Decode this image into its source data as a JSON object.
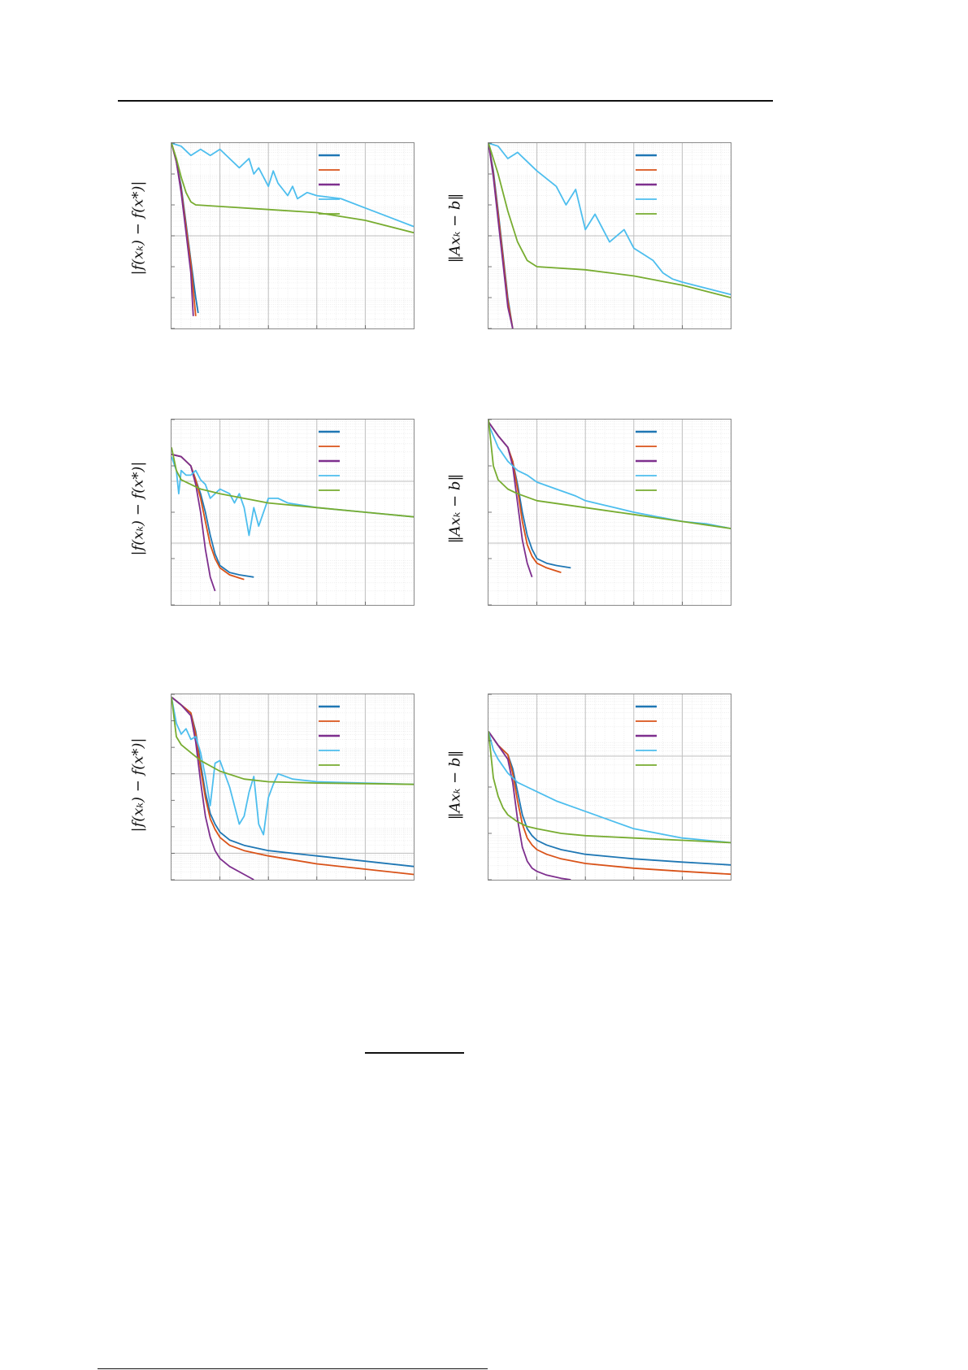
{
  "page": {
    "note": "",
    "colors": {
      "frame": "#8a8a8a",
      "major_grid": "#bfbfbf",
      "minor_grid": "#e4e4e4"
    }
  },
  "legend_colors": [
    "#1f77b4",
    "#d95319",
    "#7e2f8e",
    "#4dbeee",
    "#77ac30"
  ],
  "chart_data": [
    {
      "type": "line",
      "ylabel": "|f(x_k) − f(x*)|",
      "ylabel_text": "|f(xₖ) − f(x*)|",
      "x_range": [
        0,
        50
      ],
      "y_log_range": [
        -6,
        0
      ],
      "grid": true,
      "legend": "top-right",
      "series": [
        {
          "color": "#1f77b4",
          "x": [
            0,
            1,
            2,
            3,
            4,
            5,
            5.5
          ],
          "y": [
            0,
            -0.6,
            -1.4,
            -2.6,
            -3.8,
            -5.0,
            -5.5
          ]
        },
        {
          "color": "#d95319",
          "x": [
            0,
            1,
            2,
            3,
            4,
            5
          ],
          "y": [
            0,
            -0.6,
            -1.5,
            -2.7,
            -3.9,
            -5.6
          ]
        },
        {
          "color": "#7e2f8e",
          "x": [
            0,
            1,
            2,
            3,
            4,
            4.5
          ],
          "y": [
            0,
            -0.6,
            -1.6,
            -2.9,
            -4.2,
            -5.6
          ]
        },
        {
          "color": "#4dbeee",
          "x": [
            0,
            2,
            4,
            6,
            8,
            10,
            12,
            14,
            16,
            17,
            18,
            20,
            21,
            22,
            23,
            24,
            25,
            26,
            28,
            30,
            35,
            40,
            45,
            50
          ],
          "y": [
            0,
            -0.1,
            -0.4,
            -0.2,
            -0.4,
            -0.2,
            -0.5,
            -0.8,
            -0.5,
            -1.0,
            -0.8,
            -1.4,
            -0.9,
            -1.3,
            -1.5,
            -1.7,
            -1.4,
            -1.8,
            -1.6,
            -1.7,
            -1.8,
            -2.1,
            -2.4,
            -2.7
          ]
        },
        {
          "color": "#77ac30",
          "x": [
            0,
            1,
            2,
            3,
            4,
            5,
            10,
            20,
            30,
            40,
            50
          ],
          "y": [
            0,
            -0.5,
            -1.1,
            -1.6,
            -1.9,
            -2.0,
            -2.05,
            -2.15,
            -2.25,
            -2.5,
            -2.9
          ]
        }
      ]
    },
    {
      "type": "line",
      "ylabel": "‖Ax_k − b‖",
      "ylabel_text": "‖Axₖ − b‖",
      "x_range": [
        0,
        50
      ],
      "y_log_range": [
        -6,
        0
      ],
      "grid": true,
      "legend": "top-right",
      "series": [
        {
          "color": "#1f77b4",
          "x": [
            0,
            1,
            2,
            3,
            4,
            5
          ],
          "y": [
            0,
            -0.9,
            -2.2,
            -3.6,
            -5.0,
            -6.0
          ]
        },
        {
          "color": "#d95319",
          "x": [
            0,
            1,
            2,
            3,
            4,
            5
          ],
          "y": [
            0,
            -1.0,
            -2.3,
            -3.7,
            -5.1,
            -6.0
          ]
        },
        {
          "color": "#7e2f8e",
          "x": [
            0,
            1,
            2,
            3,
            4,
            5
          ],
          "y": [
            0,
            -1.1,
            -2.5,
            -3.9,
            -5.3,
            -6.0
          ]
        },
        {
          "color": "#4dbeee",
          "x": [
            0,
            2,
            4,
            6,
            8,
            10,
            14,
            16,
            18,
            20,
            22,
            25,
            28,
            30,
            32,
            34,
            36,
            38,
            40,
            50
          ],
          "y": [
            0,
            -0.1,
            -0.5,
            -0.3,
            -0.6,
            -0.9,
            -1.4,
            -2.0,
            -1.5,
            -2.8,
            -2.3,
            -3.2,
            -2.8,
            -3.4,
            -3.6,
            -3.8,
            -4.2,
            -4.4,
            -4.5,
            -4.9
          ]
        },
        {
          "color": "#77ac30",
          "x": [
            0,
            2,
            4,
            6,
            8,
            10,
            20,
            30,
            40,
            50
          ],
          "y": [
            0,
            -1.0,
            -2.2,
            -3.2,
            -3.8,
            -4.0,
            -4.1,
            -4.3,
            -4.6,
            -5.0
          ]
        }
      ]
    },
    {
      "type": "line",
      "ylabel": "|f(x_k) − f(x*)|",
      "ylabel_text": "|f(xₖ) − f(x*)|",
      "x_range": [
        0,
        50
      ],
      "y_log_range": [
        -4,
        0
      ],
      "grid": true,
      "legend": "top-right",
      "series": [
        {
          "color": "#1f77b4",
          "x": [
            0,
            2,
            4,
            5,
            6,
            7,
            8,
            9,
            10,
            12,
            14,
            17
          ],
          "y": [
            -0.75,
            -0.8,
            -1.0,
            -1.3,
            -1.6,
            -2.0,
            -2.5,
            -2.9,
            -3.15,
            -3.3,
            -3.35,
            -3.4
          ]
        },
        {
          "color": "#d95319",
          "x": [
            0,
            2,
            4,
            5,
            6,
            7,
            8,
            9,
            10,
            12,
            14,
            15
          ],
          "y": [
            -0.75,
            -0.8,
            -1.0,
            -1.3,
            -1.7,
            -2.2,
            -2.7,
            -3.0,
            -3.2,
            -3.35,
            -3.42,
            -3.45
          ]
        },
        {
          "color": "#7e2f8e",
          "x": [
            0,
            2,
            4,
            5,
            6,
            7,
            8,
            9
          ],
          "y": [
            -0.75,
            -0.8,
            -1.0,
            -1.4,
            -2.0,
            -2.8,
            -3.4,
            -3.7
          ]
        },
        {
          "color": "#4dbeee",
          "x": [
            0,
            1,
            1.5,
            2,
            3,
            4,
            5,
            6,
            7,
            8,
            10,
            12,
            13,
            14,
            15,
            16,
            17,
            18,
            20,
            22,
            24,
            30,
            40,
            50
          ],
          "y": [
            -0.8,
            -1.1,
            -1.6,
            -1.1,
            -1.2,
            -1.2,
            -1.1,
            -1.3,
            -1.4,
            -1.7,
            -1.5,
            -1.6,
            -1.8,
            -1.6,
            -1.9,
            -2.5,
            -1.9,
            -2.3,
            -1.7,
            -1.7,
            -1.8,
            -1.9,
            -2.0,
            -2.1
          ]
        },
        {
          "color": "#77ac30",
          "x": [
            0,
            1,
            2,
            4,
            6,
            10,
            20,
            30,
            40,
            50
          ],
          "y": [
            -0.6,
            -1.1,
            -1.3,
            -1.4,
            -1.5,
            -1.6,
            -1.8,
            -1.9,
            -2.0,
            -2.1
          ]
        }
      ]
    },
    {
      "type": "line",
      "ylabel": "‖Ax_k − b‖",
      "ylabel_text": "‖Axₖ − b‖",
      "x_range": [
        0,
        50
      ],
      "y_log_range": [
        -4,
        0
      ],
      "grid": true,
      "legend": "top-right",
      "series": [
        {
          "color": "#1f77b4",
          "x": [
            0,
            2,
            4,
            5,
            6,
            7,
            8,
            9,
            10,
            12,
            14,
            17
          ],
          "y": [
            -0.05,
            -0.35,
            -0.6,
            -0.9,
            -1.4,
            -2.0,
            -2.5,
            -2.8,
            -3.0,
            -3.1,
            -3.15,
            -3.2
          ]
        },
        {
          "color": "#d95319",
          "x": [
            0,
            2,
            4,
            5,
            6,
            7,
            8,
            9,
            10,
            12,
            15
          ],
          "y": [
            -0.05,
            -0.35,
            -0.6,
            -0.9,
            -1.5,
            -2.2,
            -2.7,
            -2.95,
            -3.1,
            -3.2,
            -3.3
          ]
        },
        {
          "color": "#7e2f8e",
          "x": [
            0,
            2,
            4,
            5,
            6,
            7,
            8,
            9
          ],
          "y": [
            -0.05,
            -0.35,
            -0.6,
            -1.0,
            -1.8,
            -2.6,
            -3.1,
            -3.4
          ]
        },
        {
          "color": "#4dbeee",
          "x": [
            0,
            2,
            4,
            6,
            8,
            10,
            14,
            18,
            20,
            22,
            26,
            30,
            35,
            40,
            45,
            50
          ],
          "y": [
            -0.1,
            -0.6,
            -0.9,
            -1.1,
            -1.2,
            -1.35,
            -1.5,
            -1.65,
            -1.75,
            -1.8,
            -1.9,
            -2.0,
            -2.1,
            -2.2,
            -2.25,
            -2.35
          ]
        },
        {
          "color": "#77ac30",
          "x": [
            0,
            1,
            2,
            4,
            6,
            10,
            20,
            30,
            40,
            50
          ],
          "y": [
            0,
            -1.0,
            -1.3,
            -1.5,
            -1.6,
            -1.75,
            -1.9,
            -2.05,
            -2.2,
            -2.35
          ]
        }
      ]
    },
    {
      "type": "line",
      "ylabel": "|f(x_k) − f(x*)|",
      "ylabel_text": "|f(xₖ) − f(x*)|",
      "x_range": [
        0,
        50
      ],
      "y_log_range": [
        -7,
        0
      ],
      "grid": true,
      "legend": "top-right",
      "series": [
        {
          "color": "#1f77b4",
          "x": [
            0,
            2,
            4,
            5,
            6,
            7,
            8,
            9,
            10,
            12,
            15,
            20,
            30,
            40,
            50,
            58
          ],
          "y": [
            -0.1,
            -0.4,
            -0.7,
            -1.4,
            -2.6,
            -3.7,
            -4.5,
            -4.9,
            -5.2,
            -5.5,
            -5.7,
            -5.9,
            -6.1,
            -6.3,
            -6.5,
            -6.6
          ]
        },
        {
          "color": "#d95319",
          "x": [
            0,
            2,
            4,
            5,
            6,
            7,
            8,
            9,
            10,
            12,
            15,
            20,
            30,
            40,
            50,
            57
          ],
          "y": [
            -0.1,
            -0.4,
            -0.7,
            -1.5,
            -2.8,
            -3.9,
            -4.7,
            -5.1,
            -5.4,
            -5.7,
            -5.9,
            -6.1,
            -6.4,
            -6.6,
            -6.8,
            -6.9
          ]
        },
        {
          "color": "#7e2f8e",
          "x": [
            0,
            2,
            4,
            5,
            6,
            7,
            8,
            9,
            10,
            12,
            15,
            17
          ],
          "y": [
            -0.1,
            -0.4,
            -0.8,
            -1.8,
            -3.3,
            -4.6,
            -5.4,
            -5.9,
            -6.2,
            -6.5,
            -6.8,
            -7.0
          ]
        },
        {
          "color": "#4dbeee",
          "x": [
            0,
            1,
            2,
            3,
            4,
            5,
            6,
            7,
            8,
            9,
            10,
            12,
            14,
            15,
            16,
            17,
            18,
            19,
            20,
            21,
            22,
            25,
            30,
            40,
            50
          ],
          "y": [
            -0.1,
            -1.1,
            -1.5,
            -1.3,
            -1.7,
            -1.6,
            -2.2,
            -3.1,
            -4.2,
            -2.6,
            -2.5,
            -3.5,
            -4.9,
            -4.6,
            -3.7,
            -3.1,
            -4.9,
            -5.3,
            -3.9,
            -3.4,
            -3.0,
            -3.2,
            -3.3,
            -3.35,
            -3.4
          ]
        },
        {
          "color": "#77ac30",
          "x": [
            0,
            1,
            2,
            4,
            6,
            10,
            15,
            20,
            30,
            40,
            50
          ],
          "y": [
            -0.1,
            -1.6,
            -1.9,
            -2.2,
            -2.5,
            -2.9,
            -3.2,
            -3.3,
            -3.35,
            -3.37,
            -3.4
          ]
        }
      ]
    },
    {
      "type": "line",
      "ylabel": "‖Ax_k − b‖",
      "ylabel_text": "‖Axₖ − b‖",
      "x_range": [
        0,
        50
      ],
      "y_log_range": [
        -4,
        0
      ],
      "grid": true,
      "legend": "top-right",
      "series": [
        {
          "color": "#1f77b4",
          "x": [
            0,
            2,
            4,
            5,
            6,
            7,
            8,
            9,
            10,
            12,
            15,
            20,
            30,
            40,
            50,
            58
          ],
          "y": [
            -0.8,
            -1.1,
            -1.3,
            -1.6,
            -2.1,
            -2.6,
            -2.9,
            -3.05,
            -3.15,
            -3.25,
            -3.35,
            -3.45,
            -3.55,
            -3.62,
            -3.68,
            -3.72
          ]
        },
        {
          "color": "#d95319",
          "x": [
            0,
            2,
            4,
            5,
            6,
            7,
            8,
            9,
            10,
            12,
            15,
            20,
            30,
            40,
            50,
            56
          ],
          "y": [
            -0.8,
            -1.1,
            -1.3,
            -1.7,
            -2.3,
            -2.8,
            -3.1,
            -3.25,
            -3.35,
            -3.45,
            -3.55,
            -3.65,
            -3.75,
            -3.82,
            -3.88,
            -3.9
          ]
        },
        {
          "color": "#7e2f8e",
          "x": [
            0,
            2,
            4,
            5,
            6,
            7,
            8,
            9,
            10,
            12,
            15,
            17
          ],
          "y": [
            -0.8,
            -1.1,
            -1.4,
            -1.9,
            -2.7,
            -3.3,
            -3.6,
            -3.75,
            -3.82,
            -3.9,
            -3.97,
            -4.0
          ]
        },
        {
          "color": "#4dbeee",
          "x": [
            0,
            1,
            2,
            4,
            6,
            8,
            10,
            14,
            18,
            22,
            26,
            30,
            35,
            40,
            45,
            50
          ],
          "y": [
            -0.8,
            -1.2,
            -1.4,
            -1.7,
            -1.9,
            -2.0,
            -2.1,
            -2.3,
            -2.45,
            -2.6,
            -2.75,
            -2.9,
            -3.0,
            -3.1,
            -3.15,
            -3.2
          ]
        },
        {
          "color": "#77ac30",
          "x": [
            0,
            1,
            2,
            3,
            4,
            6,
            8,
            10,
            15,
            20,
            30,
            40,
            50
          ],
          "y": [
            -0.8,
            -1.8,
            -2.2,
            -2.45,
            -2.6,
            -2.75,
            -2.85,
            -2.9,
            -3.0,
            -3.05,
            -3.1,
            -3.15,
            -3.2
          ]
        }
      ]
    }
  ]
}
